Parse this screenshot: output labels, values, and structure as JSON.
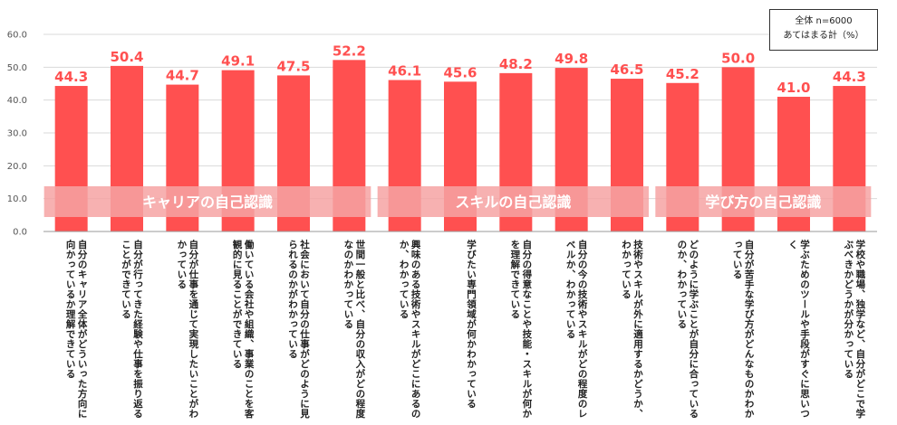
{
  "legend": {
    "line1": "全体 n=6000",
    "line2": "あてはまる計（%）"
  },
  "chart_data": {
    "type": "bar",
    "ylim": [
      0,
      60
    ],
    "yticks": [
      "0.0",
      "10.0",
      "20.0",
      "30.0",
      "40.0",
      "50.0",
      "60.0"
    ],
    "grid": true,
    "bar_color": "#ff5050",
    "categories": [
      "自分のキャリア全体がどういった方向に向かっているか理解できている",
      "自分が行ってきた経験や仕事を振り返ることができている",
      "自分が仕事を通じて実現したいことがわかっている",
      "働いている会社や組織、事業のことを客観的に見ることができている",
      "社会において自分の仕事がどのように見られるのかがわかっている",
      "世間一般と比べ、自分の収入がどの程度なのかわかっている",
      "興味のある技術やスキルがどこにあるのか、わかっている",
      "学びたい専門領域が何かわかっている",
      "自分の得意なことや技能・スキルが何かを理解できている",
      "自分の今の技術やスキルがどの程度のレベルか、わかっている",
      "技術やスキルが外に適用するかどうか、わかっている",
      "どのように学ぶことが自分に合っているのか、わかっている",
      "自分が苦手な学び方がどんなものかわかっている",
      "学ぶためのツールや手段がすぐに思いつく",
      "学校や職場、独学など、自分がどこで学ぶべきかどうかが分かっている"
    ],
    "values": [
      44.3,
      50.4,
      44.7,
      49.1,
      47.5,
      52.2,
      46.1,
      45.6,
      48.2,
      49.8,
      46.5,
      45.2,
      50.0,
      41.0,
      44.3
    ],
    "value_labels": [
      "44.3",
      "50.4",
      "44.7",
      "49.1",
      "47.5",
      "52.2",
      "46.1",
      "45.6",
      "48.2",
      "49.8",
      "46.5",
      "45.2",
      "50.0",
      "41.0",
      "44.3"
    ],
    "groups": [
      {
        "label": "キャリアの自己認識",
        "start": 0,
        "end": 5
      },
      {
        "label": "スキルの自己認識",
        "start": 6,
        "end": 10
      },
      {
        "label": "学び方の自己認識",
        "start": 11,
        "end": 14
      }
    ]
  }
}
